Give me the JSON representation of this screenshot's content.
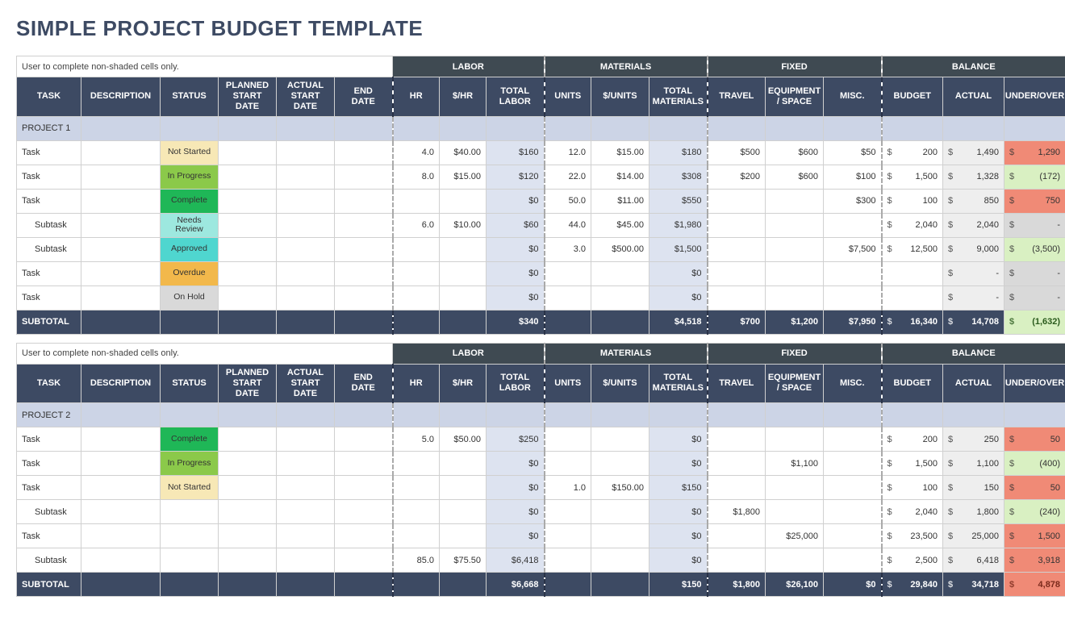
{
  "title": "SIMPLE PROJECT BUDGET TEMPLATE",
  "note": "User to complete non-shaded cells only.",
  "colors": {
    "header_dark": "#3d4a63",
    "group_header": "#3f4a52",
    "project_row": "#ccd4e6",
    "calc_blue": "#dde3f0",
    "calc_grey": "#eeeeee",
    "over": "#f08a76",
    "under": "#d9f0c2",
    "neutral": "#d9d9d9"
  },
  "status_colors": {
    "Not Started": "#f7e8b6",
    "In Progress": "#8bc94a",
    "Complete": "#1fb757",
    "Needs Review": "#9de8df",
    "Approved": "#4fd6cf",
    "Overdue": "#f2b84b",
    "On Hold": "#d9d9d9"
  },
  "groups": [
    {
      "label": "LABOR",
      "span": 3
    },
    {
      "label": "MATERIALS",
      "span": 3
    },
    {
      "label": "FIXED",
      "span": 3
    },
    {
      "label": "BALANCE",
      "span": 3
    }
  ],
  "columns": [
    "TASK",
    "DESCRIPTION",
    "STATUS",
    "PLANNED START DATE",
    "ACTUAL START DATE",
    "END DATE",
    "HR",
    "$/HR",
    "TOTAL LABOR",
    "UNITS",
    "$/UNITS",
    "TOTAL MATERIALS",
    "TRAVEL",
    "EQUIPMENT / SPACE",
    "MISC.",
    "BUDGET",
    "ACTUAL",
    "UNDER/OVER"
  ],
  "sections": [
    {
      "project": "PROJECT 1",
      "rows": [
        {
          "indent": 0,
          "task": "Task",
          "status": "Not Started",
          "hr": "4.0",
          "rate": "$40.00",
          "tl": "$160",
          "units": "12.0",
          "urate": "$15.00",
          "tm": "$180",
          "travel": "$500",
          "equip": "$600",
          "misc": "$50",
          "budget": "200",
          "actual": "1,490",
          "uo": "1,290",
          "uo_type": "over"
        },
        {
          "indent": 0,
          "task": "Task",
          "status": "In Progress",
          "hr": "8.0",
          "rate": "$15.00",
          "tl": "$120",
          "units": "22.0",
          "urate": "$14.00",
          "tm": "$308",
          "travel": "$200",
          "equip": "$600",
          "misc": "$100",
          "budget": "1,500",
          "actual": "1,328",
          "uo": "(172)",
          "uo_type": "under"
        },
        {
          "indent": 0,
          "task": "Task",
          "status": "Complete",
          "hr": "",
          "rate": "",
          "tl": "$0",
          "units": "50.0",
          "urate": "$11.00",
          "tm": "$550",
          "travel": "",
          "equip": "",
          "misc": "$300",
          "budget": "100",
          "actual": "850",
          "uo": "750",
          "uo_type": "over"
        },
        {
          "indent": 1,
          "task": "Subtask",
          "status": "Needs Review",
          "hr": "6.0",
          "rate": "$10.00",
          "tl": "$60",
          "units": "44.0",
          "urate": "$45.00",
          "tm": "$1,980",
          "travel": "",
          "equip": "",
          "misc": "",
          "budget": "2,040",
          "actual": "2,040",
          "uo": "-",
          "uo_type": "dash"
        },
        {
          "indent": 1,
          "task": "Subtask",
          "status": "Approved",
          "hr": "",
          "rate": "",
          "tl": "$0",
          "units": "3.0",
          "urate": "$500.00",
          "tm": "$1,500",
          "travel": "",
          "equip": "",
          "misc": "$7,500",
          "budget": "12,500",
          "actual": "9,000",
          "uo": "(3,500)",
          "uo_type": "under"
        },
        {
          "indent": 0,
          "task": "Task",
          "status": "Overdue",
          "hr": "",
          "rate": "",
          "tl": "$0",
          "units": "",
          "urate": "",
          "tm": "$0",
          "travel": "",
          "equip": "",
          "misc": "",
          "budget": "",
          "actual": "-",
          "uo": "-",
          "uo_type": "dash"
        },
        {
          "indent": 0,
          "task": "Task",
          "status": "On Hold",
          "hr": "",
          "rate": "",
          "tl": "$0",
          "units": "",
          "urate": "",
          "tm": "$0",
          "travel": "",
          "equip": "",
          "misc": "",
          "budget": "",
          "actual": "-",
          "uo": "-",
          "uo_type": "dash"
        }
      ],
      "subtotal": {
        "tl": "$340",
        "tm": "$4,518",
        "travel": "$700",
        "equip": "$1,200",
        "misc": "$7,950",
        "budget": "16,340",
        "actual": "14,708",
        "uo": "(1,632)",
        "uo_type": "under"
      }
    },
    {
      "project": "PROJECT 2",
      "rows": [
        {
          "indent": 0,
          "task": "Task",
          "status": "Complete",
          "hr": "5.0",
          "rate": "$50.00",
          "tl": "$250",
          "units": "",
          "urate": "",
          "tm": "$0",
          "travel": "",
          "equip": "",
          "misc": "",
          "budget": "200",
          "actual": "250",
          "uo": "50",
          "uo_type": "over"
        },
        {
          "indent": 0,
          "task": "Task",
          "status": "In Progress",
          "hr": "",
          "rate": "",
          "tl": "$0",
          "units": "",
          "urate": "",
          "tm": "$0",
          "travel": "",
          "equip": "$1,100",
          "misc": "",
          "budget": "1,500",
          "actual": "1,100",
          "uo": "(400)",
          "uo_type": "under"
        },
        {
          "indent": 0,
          "task": "Task",
          "status": "Not Started",
          "hr": "",
          "rate": "",
          "tl": "$0",
          "units": "1.0",
          "urate": "$150.00",
          "tm": "$150",
          "travel": "",
          "equip": "",
          "misc": "",
          "budget": "100",
          "actual": "150",
          "uo": "50",
          "uo_type": "over"
        },
        {
          "indent": 1,
          "task": "Subtask",
          "status": "",
          "hr": "",
          "rate": "",
          "tl": "$0",
          "units": "",
          "urate": "",
          "tm": "$0",
          "travel": "$1,800",
          "equip": "",
          "misc": "",
          "budget": "2,040",
          "actual": "1,800",
          "uo": "(240)",
          "uo_type": "under"
        },
        {
          "indent": 0,
          "task": "Task",
          "status": "",
          "hr": "",
          "rate": "",
          "tl": "$0",
          "units": "",
          "urate": "",
          "tm": "$0",
          "travel": "",
          "equip": "$25,000",
          "misc": "",
          "budget": "23,500",
          "actual": "25,000",
          "uo": "1,500",
          "uo_type": "over"
        },
        {
          "indent": 1,
          "task": "Subtask",
          "status": "",
          "hr": "85.0",
          "rate": "$75.50",
          "tl": "$6,418",
          "units": "",
          "urate": "",
          "tm": "$0",
          "travel": "",
          "equip": "",
          "misc": "",
          "budget": "2,500",
          "actual": "6,418",
          "uo": "3,918",
          "uo_type": "over"
        }
      ],
      "subtotal": {
        "tl": "$6,668",
        "tm": "$150",
        "travel": "$1,800",
        "equip": "$26,100",
        "misc": "$0",
        "budget": "29,840",
        "actual": "34,718",
        "uo": "4,878",
        "uo_type": "over"
      }
    }
  ],
  "labels": {
    "subtotal": "SUBTOTAL"
  }
}
